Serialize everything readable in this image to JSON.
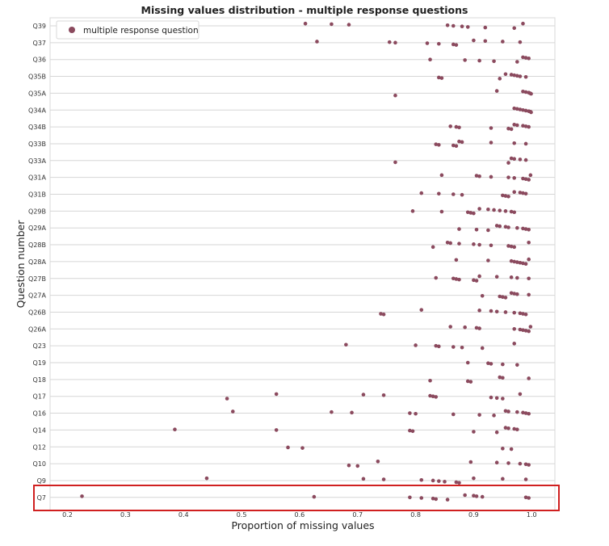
{
  "chart_data": {
    "type": "scatter",
    "title": "Missing values distribution - multiple response questions",
    "xlabel": "Proportion of missing values",
    "ylabel": "Question number",
    "xlim": [
      0.17,
      1.04
    ],
    "xticks": [
      "0.2",
      "0.3",
      "0.4",
      "0.5",
      "0.6",
      "0.7",
      "0.8",
      "0.9",
      "1.0"
    ],
    "grid": true,
    "legend_position": "top-left",
    "marker_color": "#8b4a5e",
    "highlight_color": "#d02020",
    "highlight_category": "Q7",
    "series": [
      {
        "name": "multiple response question",
        "categories": [
          "Q39",
          "Q37",
          "Q36",
          "Q35B",
          "Q35A",
          "Q34A",
          "Q34B",
          "Q33B",
          "Q33A",
          "Q31A",
          "Q31B",
          "Q29B",
          "Q29A",
          "Q28B",
          "Q28A",
          "Q27B",
          "Q27A",
          "Q26B",
          "Q26A",
          "Q23",
          "Q19",
          "Q18",
          "Q17",
          "Q16",
          "Q14",
          "Q12",
          "Q10",
          "Q9",
          "Q7"
        ],
        "values": [
          [
            0.61,
            0.655,
            0.685,
            0.855,
            0.865,
            0.88,
            0.89,
            0.92,
            0.97,
            0.985
          ],
          [
            0.63,
            0.755,
            0.765,
            0.82,
            0.84,
            0.865,
            0.87,
            0.9,
            0.92,
            0.95,
            0.98
          ],
          [
            0.825,
            0.885,
            0.91,
            0.935,
            0.975,
            0.985,
            0.99,
            0.995
          ],
          [
            0.84,
            0.845,
            0.945,
            0.955,
            0.965,
            0.97,
            0.975,
            0.98,
            0.99
          ],
          [
            0.765,
            0.94,
            0.985,
            0.99,
            0.995,
            0.997,
            0.999
          ],
          [
            0.97,
            0.975,
            0.98,
            0.985,
            0.99,
            0.995,
            0.998,
            0.999
          ],
          [
            0.86,
            0.87,
            0.875,
            0.93,
            0.96,
            0.965,
            0.97,
            0.975,
            0.985,
            0.99,
            0.995
          ],
          [
            0.835,
            0.84,
            0.865,
            0.87,
            0.875,
            0.88,
            0.93,
            0.97,
            0.99
          ],
          [
            0.765,
            0.96,
            0.965,
            0.97,
            0.98,
            0.99
          ],
          [
            0.845,
            0.905,
            0.91,
            0.93,
            0.96,
            0.97,
            0.985,
            0.99,
            0.995,
            0.998
          ],
          [
            0.81,
            0.84,
            0.865,
            0.88,
            0.95,
            0.955,
            0.96,
            0.97,
            0.98,
            0.985,
            0.99
          ],
          [
            0.795,
            0.845,
            0.89,
            0.895,
            0.9,
            0.91,
            0.925,
            0.935,
            0.945,
            0.955,
            0.965,
            0.97
          ],
          [
            0.875,
            0.905,
            0.925,
            0.94,
            0.945,
            0.955,
            0.96,
            0.975,
            0.985,
            0.99,
            0.995
          ],
          [
            0.83,
            0.855,
            0.86,
            0.875,
            0.9,
            0.91,
            0.93,
            0.96,
            0.965,
            0.97,
            0.995
          ],
          [
            0.87,
            0.925,
            0.965,
            0.97,
            0.975,
            0.98,
            0.985,
            0.99,
            0.995
          ],
          [
            0.835,
            0.865,
            0.87,
            0.875,
            0.9,
            0.905,
            0.91,
            0.94,
            0.965,
            0.975,
            0.995
          ],
          [
            0.915,
            0.945,
            0.95,
            0.955,
            0.965,
            0.97,
            0.975,
            0.995
          ],
          [
            0.74,
            0.745,
            0.81,
            0.91,
            0.93,
            0.94,
            0.955,
            0.97,
            0.98,
            0.985,
            0.99
          ],
          [
            0.86,
            0.885,
            0.905,
            0.91,
            0.97,
            0.98,
            0.985,
            0.99,
            0.995,
            0.998
          ],
          [
            0.68,
            0.8,
            0.835,
            0.84,
            0.865,
            0.88,
            0.915,
            0.97
          ],
          [
            0.89,
            0.925,
            0.93,
            0.95,
            0.975
          ],
          [
            0.825,
            0.89,
            0.895,
            0.945,
            0.95,
            0.995
          ],
          [
            0.475,
            0.56,
            0.71,
            0.745,
            0.825,
            0.83,
            0.835,
            0.93,
            0.94,
            0.95,
            0.98
          ],
          [
            0.485,
            0.655,
            0.69,
            0.79,
            0.8,
            0.865,
            0.91,
            0.935,
            0.955,
            0.96,
            0.975,
            0.985,
            0.99,
            0.995
          ],
          [
            0.385,
            0.56,
            0.79,
            0.795,
            0.9,
            0.94,
            0.955,
            0.96,
            0.97,
            0.975
          ],
          [
            0.58,
            0.605,
            0.95,
            0.965
          ],
          [
            0.685,
            0.7,
            0.735,
            0.895,
            0.94,
            0.96,
            0.98,
            0.99,
            0.995
          ],
          [
            0.44,
            0.71,
            0.745,
            0.81,
            0.83,
            0.84,
            0.85,
            0.87,
            0.875,
            0.9,
            0.95,
            0.99
          ],
          [
            0.225,
            0.625,
            0.79,
            0.81,
            0.83,
            0.835,
            0.855,
            0.885,
            0.9,
            0.905,
            0.915,
            0.99,
            0.995
          ]
        ]
      }
    ]
  }
}
